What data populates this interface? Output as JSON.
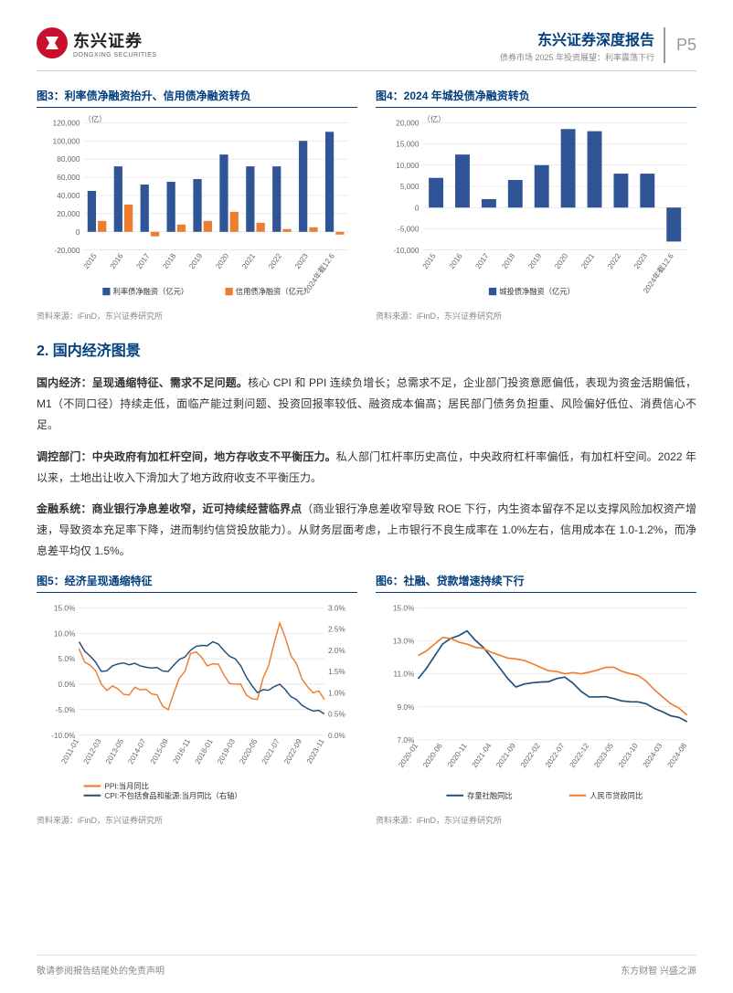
{
  "header": {
    "logo_cn": "东兴证券",
    "logo_en": "DONGXING SECURITIES",
    "title": "东兴证券深度报告",
    "subtitle": "债券市场 2025 年投资展望：利率震荡下行",
    "page": "P5"
  },
  "chart3": {
    "title": "图3：利率债净融资抬升、信用债净融资转负",
    "type": "bar",
    "unit": "（亿）",
    "categories": [
      "2015",
      "2016",
      "2017",
      "2018",
      "2019",
      "2020",
      "2021",
      "2022",
      "2023",
      "2024年截12.6"
    ],
    "series": [
      {
        "name": "利率债净融资（亿元）",
        "color": "#2f5597",
        "values": [
          45000,
          72000,
          52000,
          55000,
          58000,
          85000,
          72000,
          72000,
          100000,
          110000
        ]
      },
      {
        "name": "信用债净融资（亿元）",
        "color": "#ed7d31",
        "values": [
          12000,
          30000,
          -5000,
          8000,
          12000,
          22000,
          10000,
          3000,
          5000,
          -3000
        ]
      }
    ],
    "ylim": [
      -20000,
      120000
    ],
    "ytick_step": 20000,
    "background_color": "#ffffff",
    "grid_color": "#d9d9d9",
    "source": "资料来源：iFinD，东兴证券研究所"
  },
  "chart4": {
    "title": "图4：2024 年城投债净融资转负",
    "type": "bar",
    "unit": "（亿）",
    "categories": [
      "2015",
      "2016",
      "2017",
      "2018",
      "2019",
      "2020",
      "2021",
      "2022",
      "2023",
      "2024年截12.6"
    ],
    "series": [
      {
        "name": "城投债净融资（亿元）",
        "color": "#2f5597",
        "values": [
          7000,
          12500,
          2000,
          6500,
          10000,
          18500,
          18000,
          8000,
          8000,
          -8000
        ]
      }
    ],
    "ylim": [
      -10000,
      20000
    ],
    "ytick_step": 5000,
    "background_color": "#ffffff",
    "grid_color": "#d9d9d9",
    "source": "资料来源：iFinD，东兴证券研究所"
  },
  "section_title": "2. 国内经济图景",
  "para1_bold": "国内经济：呈现通缩特征、需求不足问题。",
  "para1_rest": "核心 CPI 和 PPI 连续负增长；总需求不足，企业部门投资意愿偏低，表现为资金活期偏低，M1（不同口径）持续走低，面临产能过剩问题、投资回报率较低、融资成本偏高；居民部门债务负担重、风险偏好低位、消费信心不足。",
  "para2_bold": "调控部门：中央政府有加杠杆空间，地方存收支不平衡压力。",
  "para2_rest": "私人部门杠杆率历史高位，中央政府杠杆率偏低，有加杠杆空间。2022 年以来，土地出让收入下滑加大了地方政府收支不平衡压力。",
  "para3_bold": "金融系统：商业银行净息差收窄，近可持续经营临界点",
  "para3_rest": "（商业银行净息差收窄导致 ROE 下行，内生资本留存不足以支撑风险加权资产增速，导致资本充足率下降，进而制约信贷投放能力）。从财务层面考虑，上市银行不良生成率在 1.0%左右，信用成本在 1.0-1.2%，而净息差平均仅 1.5%。",
  "chart5": {
    "title": "图5：经济呈现通缩特征",
    "type": "line",
    "x_labels": [
      "2011-01",
      "2012-03",
      "2013-05",
      "2014-07",
      "2015-09",
      "2016-11",
      "2018-01",
      "2019-03",
      "2020-05",
      "2021-07",
      "2022-09",
      "2023-11"
    ],
    "series": [
      {
        "name": "PPI:当月同比",
        "color": "#ed7d31",
        "axis": "left",
        "values": [
          7,
          0,
          -2,
          -1,
          -5,
          6,
          4,
          0,
          -3,
          12,
          1,
          -3
        ]
      },
      {
        "name": "CPI:不包括食品和能源:当月同比（右轴）",
        "color": "#1f4e79",
        "axis": "right",
        "values": [
          2.2,
          1.5,
          1.7,
          1.6,
          1.5,
          2.0,
          2.2,
          1.8,
          1.0,
          1.2,
          0.7,
          0.5
        ]
      }
    ],
    "ylim_left": [
      -10,
      15
    ],
    "ytick_left": 5,
    "ylim_right": [
      0,
      3
    ],
    "ytick_right": 0.5,
    "grid_color": "#d9d9d9",
    "source": "资料来源：iFinD，东兴证券研究所"
  },
  "chart6": {
    "title": "图6：社融、贷款增速持续下行",
    "type": "line",
    "x_labels": [
      "2020-01",
      "2020-06",
      "2020-11",
      "2021-04",
      "2021-09",
      "2022-02",
      "2022-07",
      "2022-12",
      "2023-05",
      "2023-10",
      "2024-03",
      "2024-08"
    ],
    "series": [
      {
        "name": "存量社融同比",
        "color": "#1f4e79",
        "values": [
          10.7,
          12.8,
          13.6,
          12.0,
          10.2,
          10.5,
          10.8,
          9.6,
          9.5,
          9.3,
          8.7,
          8.1
        ]
      },
      {
        "name": "人民币贷款同比",
        "color": "#ed7d31",
        "values": [
          12.1,
          13.2,
          12.8,
          12.3,
          11.9,
          11.4,
          11.0,
          11.1,
          11.4,
          10.9,
          9.6,
          8.5
        ]
      }
    ],
    "ylim": [
      7,
      15
    ],
    "ytick": 2,
    "grid_color": "#d9d9d9",
    "source": "资料来源：iFinD，东兴证券研究所"
  },
  "footer": {
    "left": "敬请参阅报告结尾处的免责声明",
    "right": "东方财智 兴盛之源"
  }
}
